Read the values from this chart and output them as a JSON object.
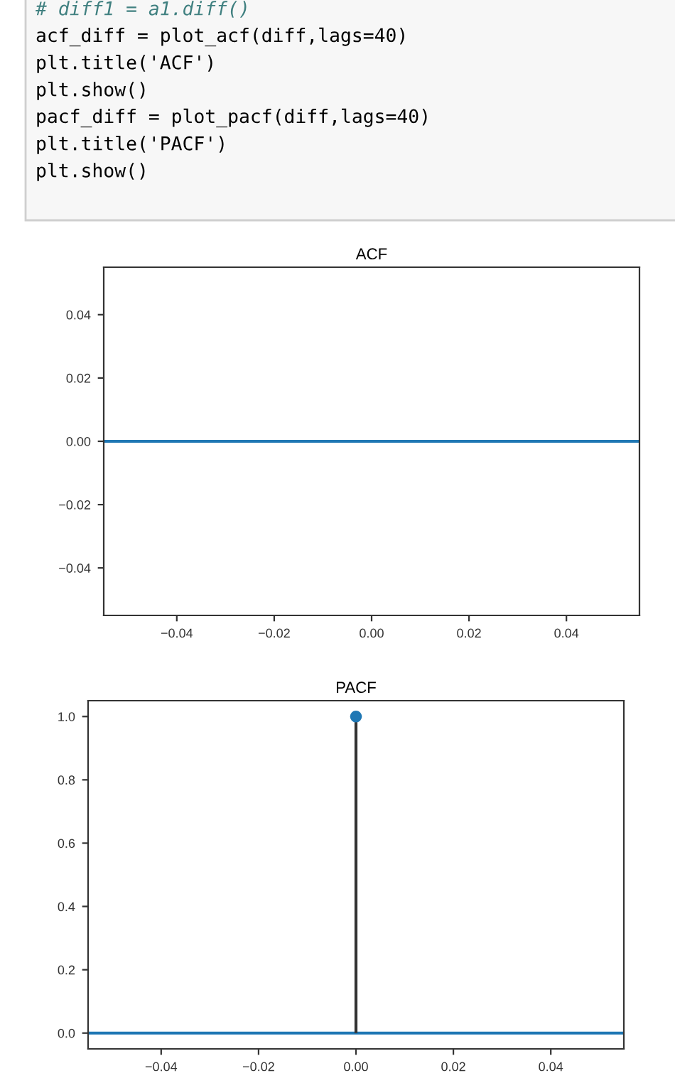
{
  "chart_data": [
    {
      "type": "lollipop",
      "title": "ACF",
      "annotations": [
        "# diff1 = a1.diff()",
        "acf_diff = plot_acf(diff,lags=40)",
        "plt.title('ACF')",
        "plt.show()",
        "pacf_diff = plot_pacf(diff,lags=40)",
        "plt.title('PACF')",
        "plt.show()"
      ],
      "xlim": [
        -0.055,
        0.055
      ],
      "xticks": [
        {
          "value": -0.04,
          "label": "−0.04"
        },
        {
          "value": -0.02,
          "label": "−0.02"
        },
        {
          "value": 0,
          "label": "0.00"
        },
        {
          "value": 0.02,
          "label": "0.02"
        },
        {
          "value": 0.04,
          "label": "0.04"
        }
      ],
      "ylim": [
        -0.055,
        0.055
      ],
      "yticks": [
        {
          "value": -0.04,
          "label": "−0.04"
        },
        {
          "value": -0.02,
          "label": "−0.02"
        },
        {
          "value": 0,
          "label": "0.00"
        },
        {
          "value": 0.02,
          "label": "0.02"
        },
        {
          "value": 0.04,
          "label": "0.04"
        }
      ],
      "ref_lines": [
        {
          "axis": "y",
          "value": 0,
          "color": "#1f77b4"
        }
      ],
      "grid": false,
      "legend": false
    },
    {
      "type": "lollipop",
      "title": "PACF",
      "x": [
        0
      ],
      "color": "#1f77b4",
      "values": [
        1.0
      ],
      "marker": "circle",
      "xlim": [
        -0.055,
        0.055
      ],
      "xticks": [
        {
          "value": -0.04,
          "label": "−0.04"
        },
        {
          "value": -0.02,
          "label": "−0.02"
        },
        {
          "value": 0,
          "label": "0.00"
        },
        {
          "value": 0.02,
          "label": "0.02"
        },
        {
          "value": 0.04,
          "label": "0.04"
        }
      ],
      "ylim": [
        -0.05,
        1.05
      ],
      "yticks": [
        {
          "value": 0,
          "label": "0.0"
        },
        {
          "value": 0.2,
          "label": "0.2"
        },
        {
          "value": 0.4,
          "label": "0.4"
        },
        {
          "value": 0.6,
          "label": "0.6"
        },
        {
          "value": 0.8,
          "label": "0.8"
        },
        {
          "value": 1,
          "label": "1.0"
        }
      ],
      "ref_lines": [
        {
          "axis": "y",
          "value": 0,
          "color": "#1f77b4"
        }
      ],
      "grid": false,
      "legend": false
    }
  ]
}
